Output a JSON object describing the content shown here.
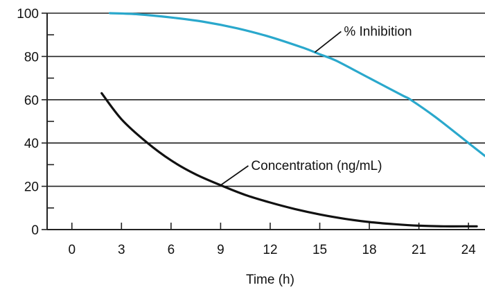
{
  "chart_data": {
    "type": "line",
    "title": "",
    "xlabel": "Time (h)",
    "ylabel": "",
    "xlim": [
      -1.5,
      25
    ],
    "ylim": [
      0,
      100
    ],
    "x_ticks": [
      0,
      3,
      6,
      9,
      12,
      15,
      18,
      21,
      24
    ],
    "y_ticks": [
      0,
      20,
      40,
      60,
      80,
      100
    ],
    "y_minor_ticks": [
      10,
      30,
      50,
      70,
      90
    ],
    "grid": {
      "horizontal": true,
      "vertical": false
    },
    "series": [
      {
        "name": "% Inhibition",
        "color": "#2aa8cc",
        "x": [
          2.3,
          4,
          6,
          8,
          10,
          12,
          14,
          15,
          16,
          18,
          20,
          20.5,
          22,
          24,
          25
        ],
        "y": [
          100,
          99.5,
          98,
          96,
          93,
          89,
          84,
          81,
          78,
          70,
          62,
          60,
          52,
          40,
          34
        ]
      },
      {
        "name": "Concentration (ng/mL)",
        "color": "#111111",
        "x": [
          1.8,
          3,
          4.5,
          6,
          7.5,
          9,
          10.5,
          12,
          13.5,
          15,
          16.5,
          18,
          19.5,
          21,
          22.5,
          24,
          24.5
        ],
        "y": [
          63,
          51,
          40.5,
          32,
          25.5,
          20.5,
          16,
          12.5,
          9.5,
          7,
          5,
          3.5,
          2.5,
          1.8,
          1.5,
          1.5,
          1.5
        ]
      }
    ],
    "annotations": [
      {
        "text": "% Inhibition",
        "series": 0,
        "at_x": 14.7
      },
      {
        "text": "Concentration (ng/mL)",
        "series": 1,
        "at_x": 9
      }
    ]
  }
}
